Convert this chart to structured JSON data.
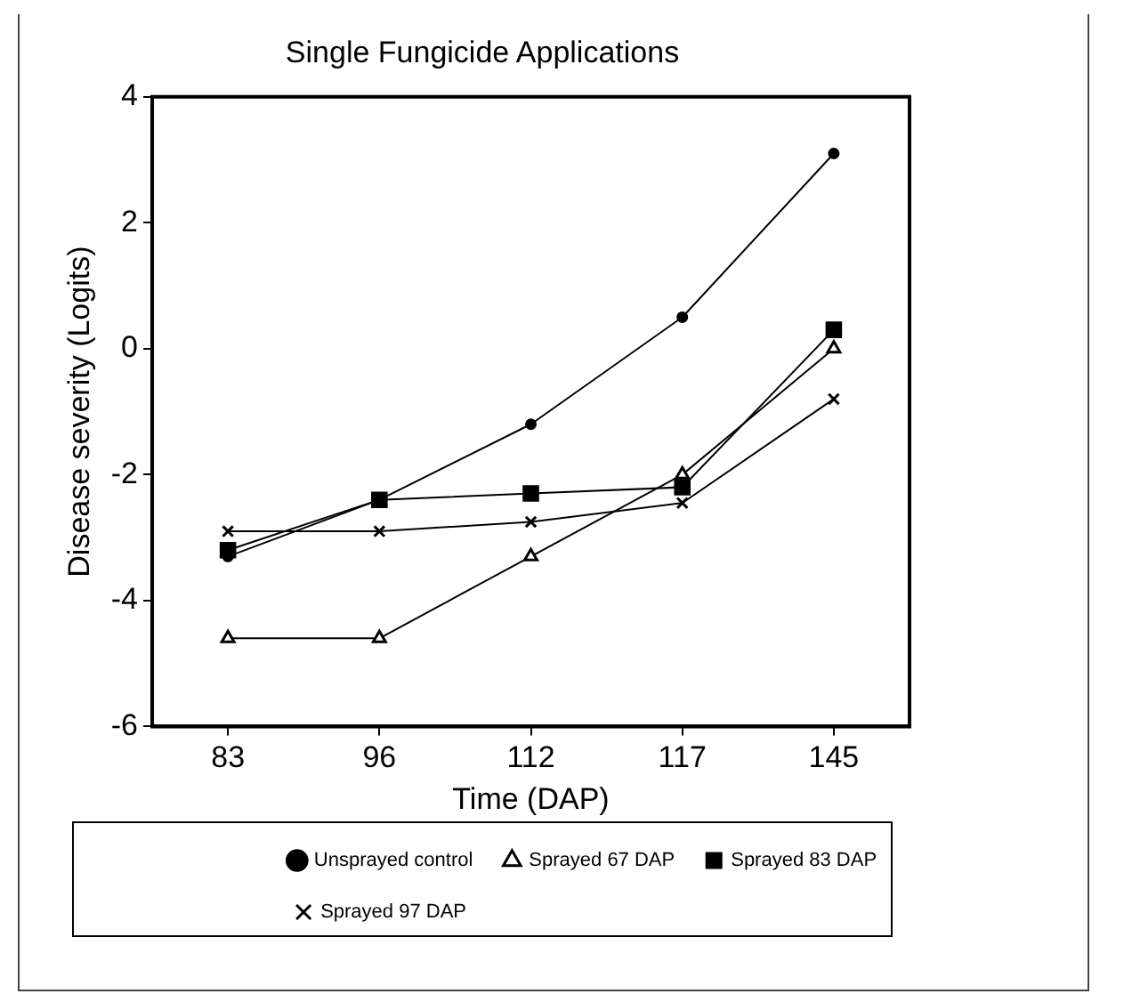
{
  "chart_data": {
    "type": "line",
    "title": "Single Fungicide Applications",
    "xlabel": "Time (DAP)",
    "ylabel": "Disease severity (Logits)",
    "categories": [
      "83",
      "96",
      "112",
      "117",
      "145"
    ],
    "series": [
      {
        "name": "Unsprayed control",
        "color": "#000000",
        "marker": "circle",
        "values": [
          -3.3,
          -2.4,
          -1.2,
          0.5,
          3.1
        ]
      },
      {
        "name": "Sprayed 67 DAP",
        "color": "#000000",
        "marker": "triangle",
        "values": [
          -4.6,
          -4.6,
          -3.3,
          -2.0,
          0.0
        ]
      },
      {
        "name": "Sprayed 83 DAP",
        "color": "#000000",
        "marker": "square",
        "values": [
          -3.2,
          -2.4,
          -2.3,
          -2.2,
          0.3
        ]
      },
      {
        "name": "Sprayed 97 DAP",
        "color": "#000000",
        "marker": "cross",
        "values": [
          -2.9,
          -2.9,
          -2.75,
          -2.45,
          -0.8
        ]
      }
    ],
    "ylim": [
      -6,
      4
    ],
    "yticks": [
      -6,
      -4,
      -2,
      0,
      2,
      4
    ],
    "grid": false,
    "legend": "bottom",
    "line_style": "solid"
  }
}
